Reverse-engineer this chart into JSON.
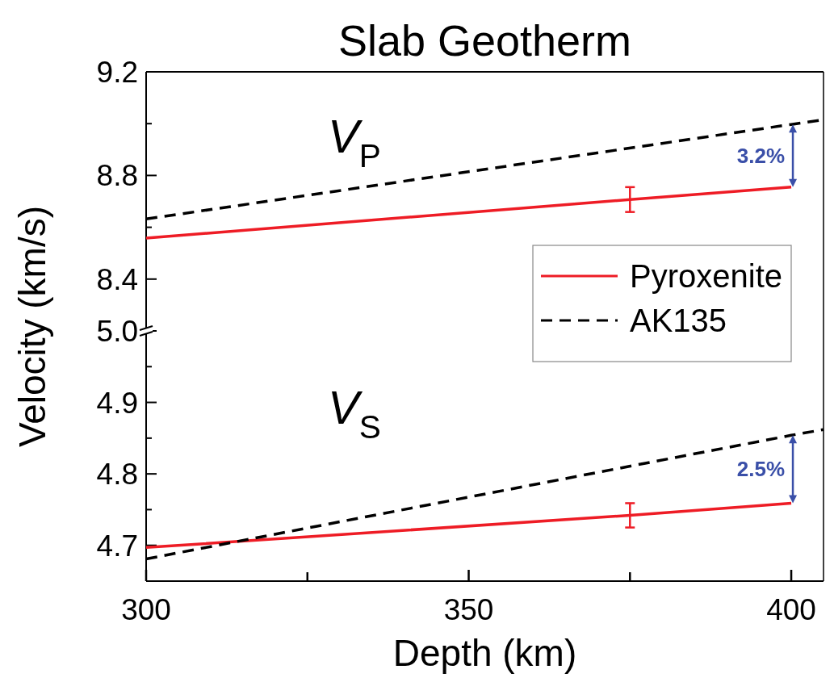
{
  "chart_data": [
    {
      "type": "line",
      "title": "Slab Geotherm",
      "ylabel": "Velocity (km/s)",
      "xlim": [
        300,
        405
      ],
      "ylim": [
        8.2,
        9.2
      ],
      "yticks": [
        8.4,
        {
          "value": 8.6,
          "label": null
        },
        8.8,
        {
          "value": 9.0,
          "label": null
        },
        9.2
      ],
      "tick_labels": "y",
      "legend": "bottom right",
      "annotations": [
        "V$_{P}$",
        "3.2%"
      ],
      "series": [
        {
          "name": "Pyroxenite",
          "color": "#ee1c25",
          "line_style": "solid",
          "x": [
            300,
            375,
            400
          ],
          "values": [
            8.558,
            8.707,
            8.755
          ],
          "errors": [
            null,
            0.048,
            null
          ]
        },
        {
          "name": "AK135",
          "color": "#000000",
          "line_style": "dashed",
          "x": [
            300,
            400,
            405
          ],
          "values": [
            8.632,
            8.997,
            9.015
          ]
        }
      ]
    },
    {
      "type": "line",
      "xlabel": "Depth (km)",
      "xlim": [
        300,
        405
      ],
      "xticks": [
        300,
        {
          "value": 325,
          "label": null
        },
        350,
        {
          "value": 375,
          "label": null
        },
        400
      ],
      "ylim": [
        4.65,
        5.0
      ],
      "yticks": [
        4.7,
        {
          "value": 4.75,
          "label": null
        },
        4.8,
        {
          "value": 4.85,
          "label": null
        },
        4.9,
        {
          "value": 4.95,
          "label": null
        },
        {
          "value": 5.0,
          "label": "5.0"
        }
      ],
      "annotations": [
        "V$_{S}$",
        "2.5%"
      ],
      "series": [
        {
          "color": "#ee1c25",
          "line_style": "solid",
          "x": [
            300,
            375,
            400
          ],
          "values": [
            4.697,
            4.742,
            4.759
          ],
          "errors": [
            null,
            0.017,
            null
          ]
        },
        {
          "color": "#000000",
          "line_style": "dashed",
          "x": [
            300,
            400,
            405
          ],
          "values": [
            4.681,
            4.854,
            4.862
          ]
        }
      ]
    }
  ]
}
